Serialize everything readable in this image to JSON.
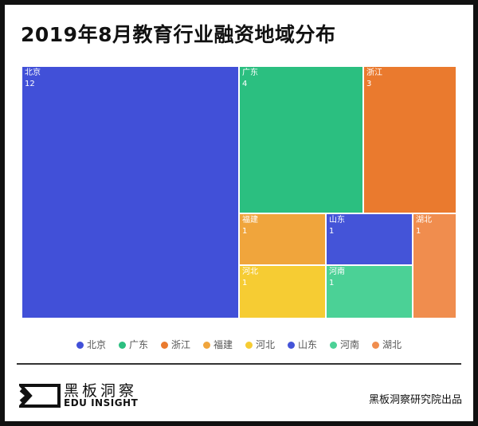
{
  "title": "2019年8月教育行业融资地域分布",
  "chart_data": {
    "type": "treemap",
    "title": "2019年8月教育行业融资地域分布",
    "legend_position": "bottom",
    "items": [
      {
        "name": "北京",
        "value": 12,
        "color": "#4150d8"
      },
      {
        "name": "广东",
        "value": 4,
        "color": "#2bbf80"
      },
      {
        "name": "浙江",
        "value": 3,
        "color": "#ea7a2e"
      },
      {
        "name": "福建",
        "value": 1,
        "color": "#f0a53c"
      },
      {
        "name": "河北",
        "value": 1,
        "color": "#f6cc33"
      },
      {
        "name": "山东",
        "value": 1,
        "color": "#4454d8"
      },
      {
        "name": "河南",
        "value": 1,
        "color": "#4bd196"
      },
      {
        "name": "湖北",
        "value": 1,
        "color": "#f08d4e"
      }
    ]
  },
  "footer": {
    "brand_cn": "黑板洞察",
    "brand_en": "EDU INSIGHT",
    "credit": "黑板洞察研究院出品"
  }
}
